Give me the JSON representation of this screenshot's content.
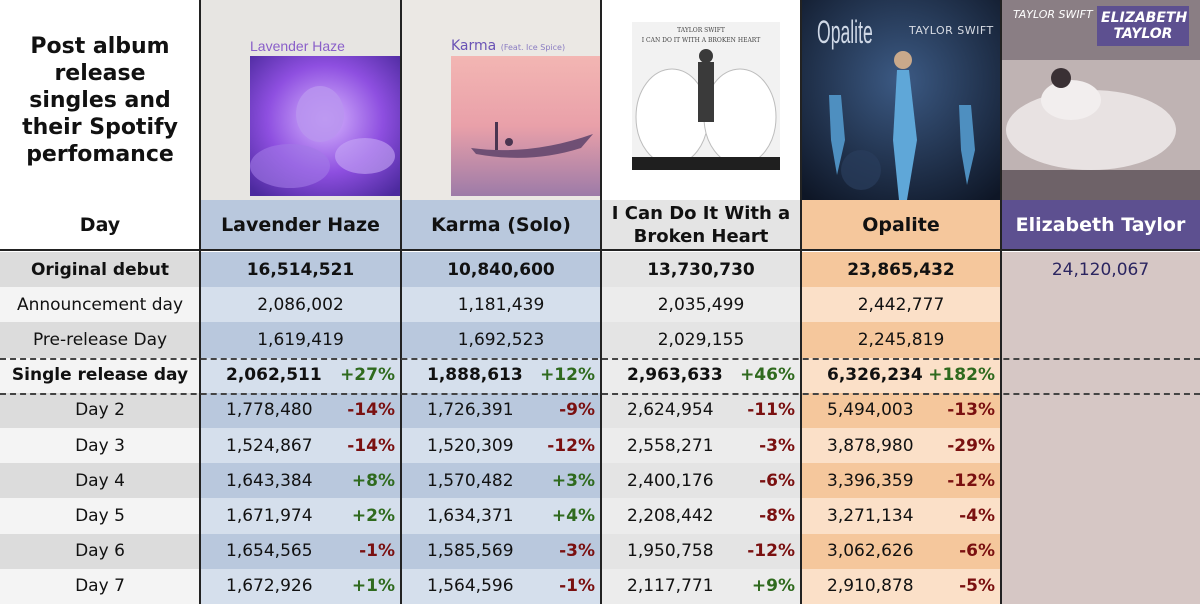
{
  "title": "Post album release singles and their Spotify perfomance",
  "day_header": "Day",
  "songs": [
    {
      "name": "Lavender Haze",
      "cover_text": "Lavender Haze",
      "color": "#b9c8dd",
      "light": "#d5dfec"
    },
    {
      "name": "Karma (Solo)",
      "cover_text": "Karma",
      "cover_subtext": "(Feat. Ice Spice)",
      "color": "#b9c8dd",
      "light": "#d5dfec"
    },
    {
      "name": "I Can Do It With a Broken Heart",
      "cover_text": "TAYLOR SWIFT",
      "cover_subtext": "I CAN DO IT WITH A BROKEN HEART",
      "color": "#e4e4e4",
      "light": "#ececec"
    },
    {
      "name": "Opalite",
      "cover_text": "Opalite",
      "cover_subtext": "TAYLOR SWIFT",
      "color": "#f5c79c",
      "light": "#fbe0c8"
    },
    {
      "name": "Elizabeth Taylor",
      "cover_text": "ELIZABETH TAYLOR",
      "cover_subtext": "TAYLOR SWIFT",
      "color": "#d9cbc9",
      "light": "#d6c7c5"
    }
  ],
  "chart_data": {
    "type": "table",
    "columns": [
      "Day",
      "Lavender Haze",
      "Karma (Solo)",
      "I Can Do It With a Broken Heart",
      "Opalite",
      "Elizabeth Taylor"
    ],
    "rows": [
      {
        "day": "Original debut",
        "bold": true,
        "values": [
          "16,514,521",
          "10,840,600",
          "13,730,730",
          "23,865,432",
          "24,120,067"
        ],
        "changes": [
          "",
          "",
          "",
          "",
          ""
        ]
      },
      {
        "day": "Announcement day",
        "bold": false,
        "values": [
          "2,086,002",
          "1,181,439",
          "2,035,499",
          "2,442,777",
          ""
        ],
        "changes": [
          "",
          "",
          "",
          "",
          ""
        ]
      },
      {
        "day": "Pre-release Day",
        "bold": false,
        "values": [
          "1,619,419",
          "1,692,523",
          "2,029,155",
          "2,245,819",
          ""
        ],
        "changes": [
          "",
          "",
          "",
          "",
          ""
        ]
      },
      {
        "day": "Single release day",
        "bold": true,
        "values": [
          "2,062,511",
          "1,888,613",
          "2,963,633",
          "6,326,234",
          ""
        ],
        "changes": [
          "+27%",
          "+12%",
          "+46%",
          "+182%",
          ""
        ]
      },
      {
        "day": "Day 2",
        "bold": false,
        "values": [
          "1,778,480",
          "1,726,391",
          "2,624,954",
          "5,494,003",
          ""
        ],
        "changes": [
          "-14%",
          "-9%",
          "-11%",
          "-13%",
          ""
        ]
      },
      {
        "day": "Day 3",
        "bold": false,
        "values": [
          "1,524,867",
          "1,520,309",
          "2,558,271",
          "3,878,980",
          ""
        ],
        "changes": [
          "-14%",
          "-12%",
          "-3%",
          "-29%",
          ""
        ]
      },
      {
        "day": "Day 4",
        "bold": false,
        "values": [
          "1,643,384",
          "1,570,482",
          "2,400,176",
          "3,396,359",
          ""
        ],
        "changes": [
          "+8%",
          "+3%",
          "-6%",
          "-12%",
          ""
        ]
      },
      {
        "day": "Day 5",
        "bold": false,
        "values": [
          "1,671,974",
          "1,634,371",
          "2,208,442",
          "3,271,134",
          ""
        ],
        "changes": [
          "+2%",
          "+4%",
          "-8%",
          "-4%",
          ""
        ]
      },
      {
        "day": "Day 6",
        "bold": false,
        "values": [
          "1,654,565",
          "1,585,569",
          "1,950,758",
          "3,062,626",
          ""
        ],
        "changes": [
          "-1%",
          "-3%",
          "-12%",
          "-6%",
          ""
        ]
      },
      {
        "day": "Day 7",
        "bold": false,
        "values": [
          "1,672,926",
          "1,564,596",
          "2,117,771",
          "2,910,878",
          ""
        ],
        "changes": [
          "+1%",
          "-1%",
          "+9%",
          "-5%",
          ""
        ]
      }
    ]
  }
}
